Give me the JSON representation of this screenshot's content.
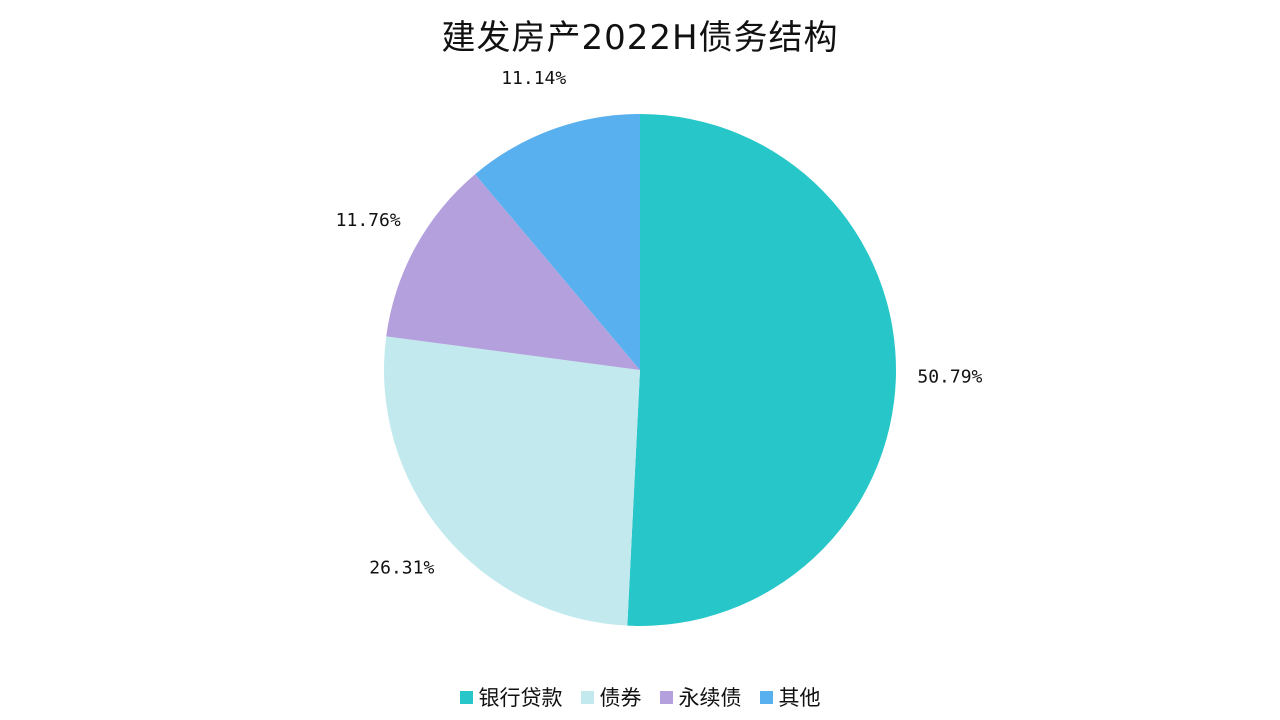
{
  "chart_data": {
    "type": "pie",
    "title": "建发房产2022H债务结构",
    "categories": [
      "银行贷款",
      "债券",
      "永续债",
      "其他"
    ],
    "values": [
      50.79,
      26.31,
      11.76,
      11.14
    ],
    "labels": [
      "50.79%",
      "26.31%",
      "11.76%",
      "11.14%"
    ],
    "colors": [
      "#27C6C8",
      "#C2EAEE",
      "#B3A0DC",
      "#59B0EE"
    ],
    "start_angle_deg": 0,
    "direction": "clockwise",
    "legend_position": "bottom"
  }
}
